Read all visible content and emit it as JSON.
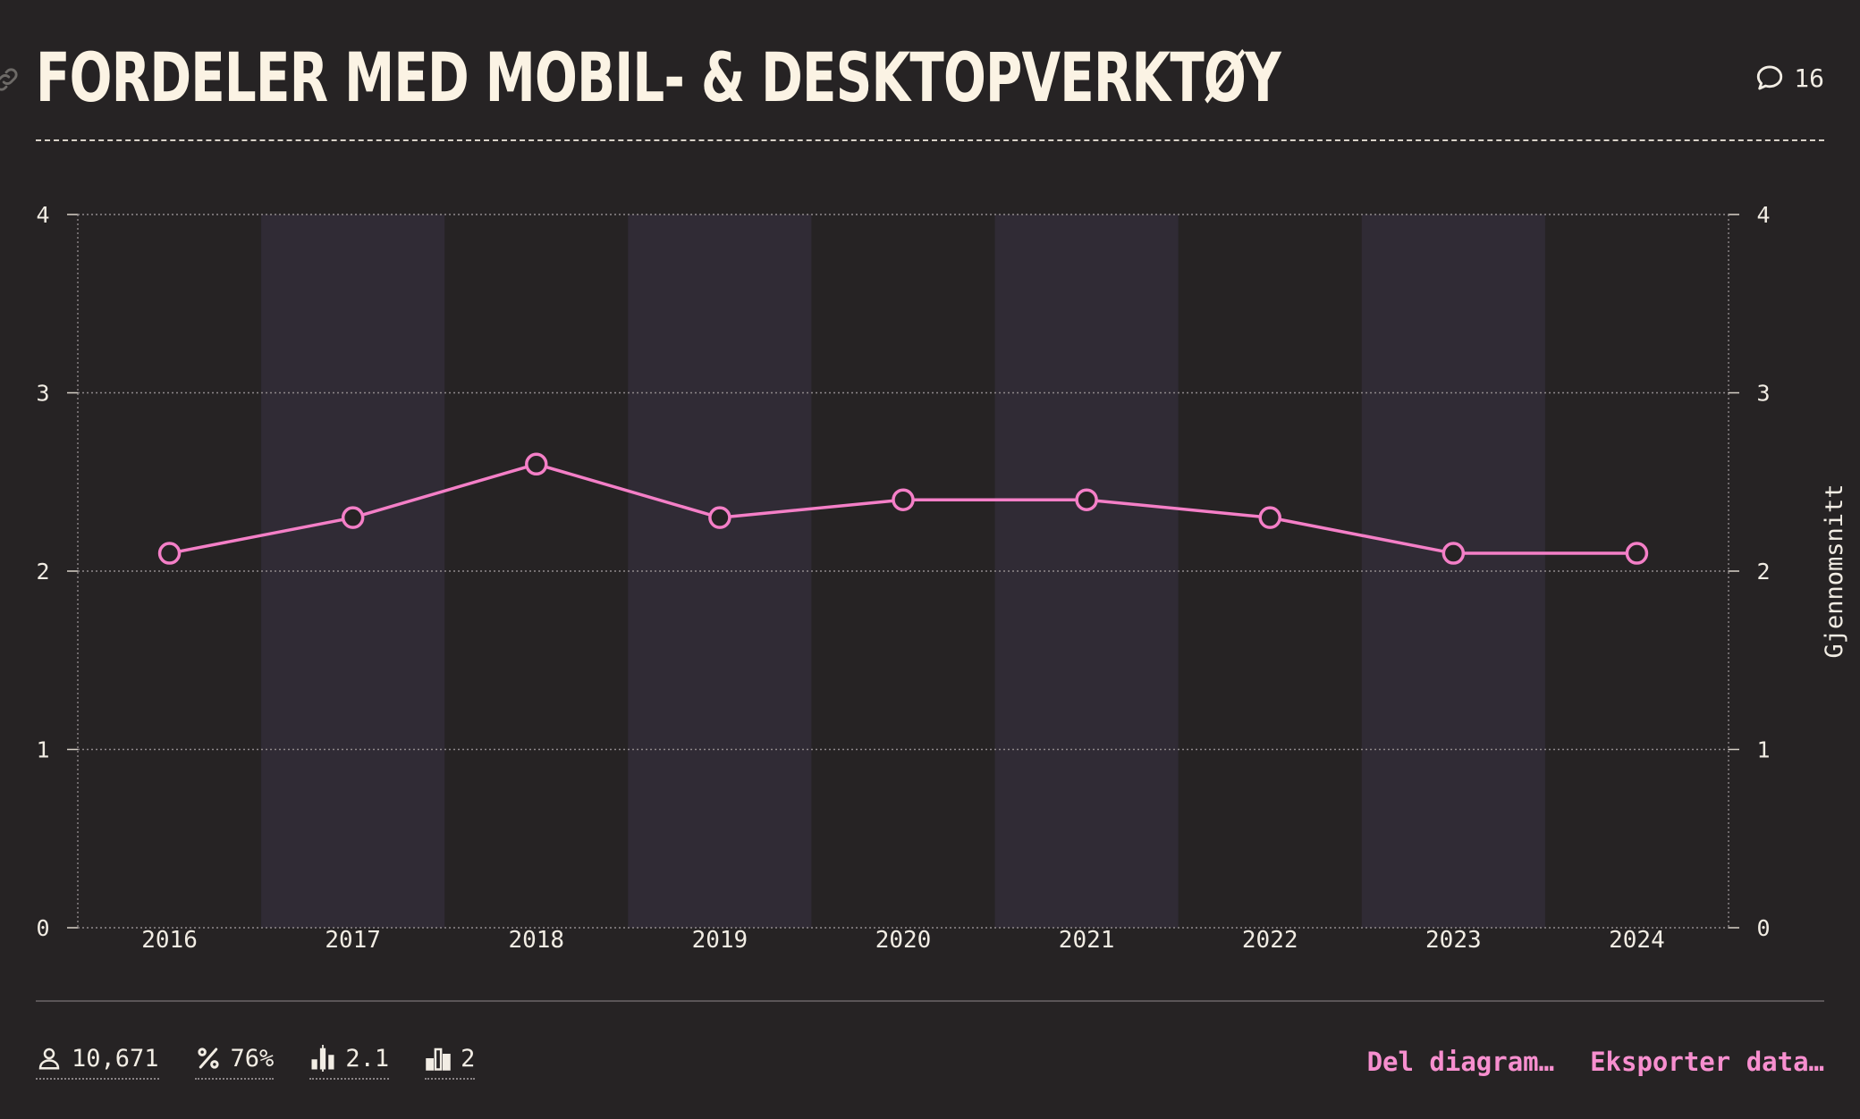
{
  "header": {
    "title": "FORDELER MED MOBIL- & DESKTOPVERKTØY",
    "comment_count": "16"
  },
  "colors": {
    "background": "#262324",
    "band": "#302b35",
    "line": "#f47fc7",
    "accent": "#f78fcf",
    "title": "#fbf3e4"
  },
  "icons": {
    "link": "link-icon",
    "comment": "speech-bubble-icon",
    "respondents": "person-icon",
    "percent": "percent-icon",
    "mean": "bar-chart-mean-icon",
    "median": "bar-chart-median-icon"
  },
  "chart_data": {
    "type": "line",
    "title": "FORDELER MED MOBIL- & DESKTOPVERKTØY",
    "categories": [
      "2016",
      "2017",
      "2018",
      "2019",
      "2020",
      "2021",
      "2022",
      "2023",
      "2024"
    ],
    "series": [
      {
        "name": "Gjennomsnitt",
        "values": [
          2.1,
          2.3,
          2.6,
          2.3,
          2.4,
          2.4,
          2.3,
          2.1,
          2.1
        ]
      }
    ],
    "ylim": [
      0,
      4
    ],
    "yticks": [
      0,
      1,
      2,
      3,
      4
    ],
    "yticks_labels": [
      "0",
      "1",
      "2",
      "3",
      "4"
    ],
    "xlabel": "",
    "ylabel": "",
    "y2label": "Gjennomsnitt",
    "grid": true,
    "alternating_bands": true
  },
  "footer": {
    "stats": {
      "respondents": "10,671",
      "percent": "76%",
      "mean": "2.1",
      "median": "2"
    },
    "actions": {
      "share": "Del diagram…",
      "export": "Eksporter data…"
    }
  }
}
